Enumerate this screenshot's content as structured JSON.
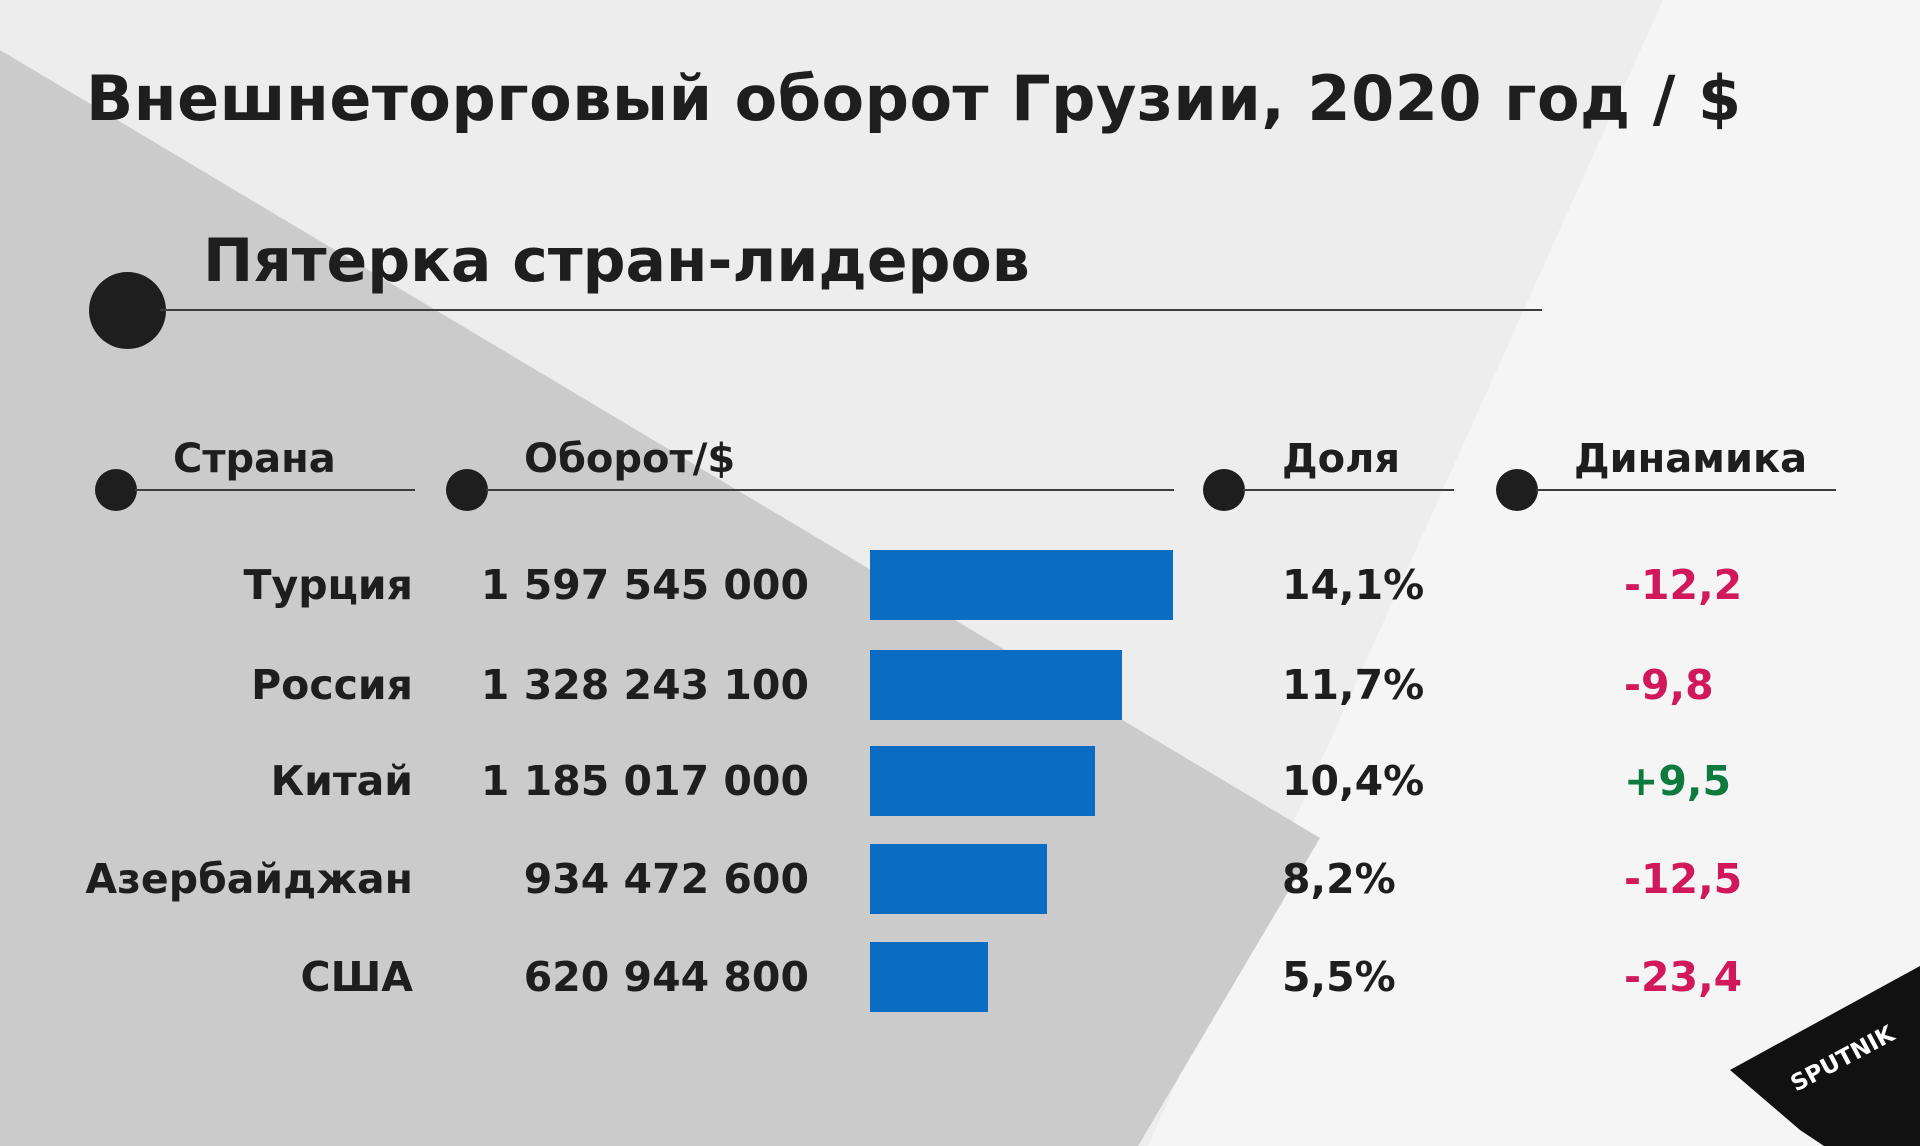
{
  "title": "Внешнеторговый оборот Грузии, 2020 год / $",
  "subtitle": "Пятерка стран-лидеров",
  "columns": {
    "country": "Страна",
    "turnover": "Оборот/$",
    "share": "Доля",
    "dynamics": "Динамика"
  },
  "colors": {
    "bar": "#0a6cc2",
    "negative": "#d1185b",
    "positive": "#0e7a3e"
  },
  "chart_data": {
    "type": "bar",
    "orientation": "horizontal",
    "title": "Внешнеторговый оборот Грузии, 2020 год / $",
    "subtitle": "Пятерка стран-лидеров",
    "categories": [
      "Турция",
      "Россия",
      "Китай",
      "Азербайджан",
      "США"
    ],
    "values": [
      1597545000,
      1328243100,
      1185017000,
      934472600,
      620944800
    ],
    "value_labels": [
      "1 597 545 000",
      "1 328 243 100",
      "1 185 017 000",
      "934 472 600",
      "620 944 800"
    ],
    "share_labels": [
      "14,1%",
      "11,7%",
      "10,4%",
      "8,2%",
      "5,5%"
    ],
    "dynamics_labels": [
      "-12,2",
      "-9,8",
      "+9,5",
      "-12,5",
      "-23,4"
    ],
    "dynamics": [
      -12.2,
      -9.8,
      9.5,
      -12.5,
      -23.4
    ],
    "grid": false,
    "legend": "none"
  },
  "brand": {
    "logo_text": "SPUTNIK"
  }
}
